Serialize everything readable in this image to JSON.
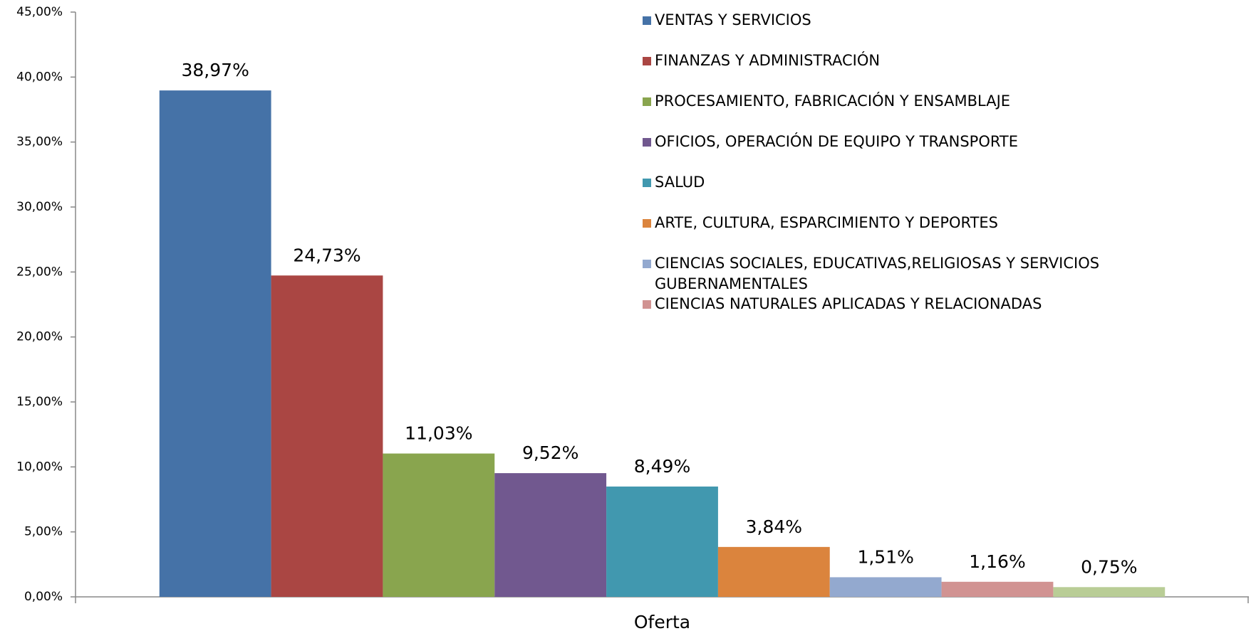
{
  "chart_data": {
    "type": "bar",
    "categories": [
      "Oferta"
    ],
    "series": [
      {
        "name": "VENTAS Y SERVICIOS",
        "color": "#4572a7",
        "values": [
          38.97
        ],
        "value_labels": [
          "38,97%"
        ]
      },
      {
        "name": "FINANZAS Y ADMINISTRACIÓN",
        "color": "#aa4643",
        "values": [
          24.73
        ],
        "value_labels": [
          "24,73%"
        ]
      },
      {
        "name": "PROCESAMIENTO, FABRICACIÓN Y ENSAMBLAJE",
        "color": "#89a54e",
        "values": [
          11.03
        ],
        "value_labels": [
          "11,03%"
        ]
      },
      {
        "name": "OFICIOS, OPERACIÓN DE EQUIPO Y TRANSPORTE",
        "color": "#71588f",
        "values": [
          9.52
        ],
        "value_labels": [
          "9,52%"
        ]
      },
      {
        "name": "SALUD",
        "color": "#4198af",
        "values": [
          8.49
        ],
        "value_labels": [
          "8,49%"
        ]
      },
      {
        "name": "ARTE, CULTURA, ESPARCIMIENTO Y DEPORTES",
        "color": "#db843d",
        "values": [
          3.84
        ],
        "value_labels": [
          "3,84%"
        ]
      },
      {
        "name": "CIENCIAS SOCIALES, EDUCATIVAS,RELIGIOSAS Y SERVICIOS GUBERNAMENTALES",
        "color": "#93a9cf",
        "values": [
          1.51
        ],
        "value_labels": [
          "1,51%"
        ]
      },
      {
        "name": "CIENCIAS NATURALES APLICADAS Y RELACIONADAS",
        "color": "#d19392",
        "values": [
          1.16
        ],
        "value_labels": [
          "1,16%"
        ]
      },
      {
        "name": null,
        "color": "#b9cd96",
        "values": [
          0.75
        ],
        "value_labels": [
          "0,75%"
        ]
      }
    ],
    "ylim": [
      0,
      45
    ],
    "yticks": [
      {
        "value": 0,
        "label": "0,00%"
      },
      {
        "value": 5,
        "label": "5,00%"
      },
      {
        "value": 10,
        "label": "10,00%"
      },
      {
        "value": 15,
        "label": "15,00%"
      },
      {
        "value": 20,
        "label": "20,00%"
      },
      {
        "value": 25,
        "label": "25,00%"
      },
      {
        "value": 30,
        "label": "30,00%"
      },
      {
        "value": 35,
        "label": "35,00%"
      },
      {
        "value": 40,
        "label": "40,00%"
      },
      {
        "value": 45,
        "label": "45,00%"
      }
    ],
    "grid": false,
    "legend": "top-right"
  }
}
